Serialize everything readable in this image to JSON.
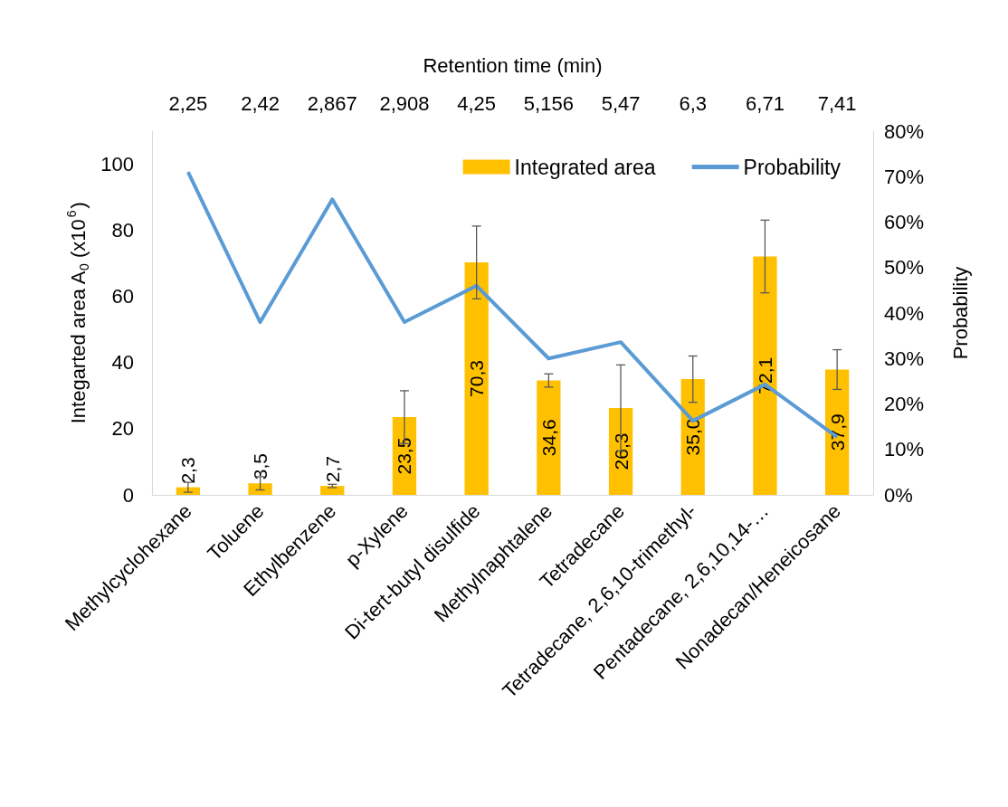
{
  "chart_data": {
    "type": "bar",
    "x2label": "Retention time (min)",
    "ylabel": "Integarted area A$_{0}$ (x10$^{6}$)",
    "y2label": "Probability",
    "categories": [
      "Methylcyclohexane",
      "Toluene",
      "Ethylbenzene",
      "p-Xylene",
      "Di-tert-butyl disulfide",
      "Methylnaphtalene",
      "Tetradecane",
      "Tetradecane, 2,6,10-trimethyl-",
      "Pentadecane, 2,6,10,14-…",
      "Nonadecan/Heneicosane"
    ],
    "annotations": [
      "2,25",
      "2,42",
      "2,867",
      "2,908",
      "4,25",
      "5,156",
      "5,47",
      "6,3",
      "6,71",
      "7,41"
    ],
    "series": [
      {
        "name": "Integrated area",
        "color": "#ffc000",
        "values": [
          2.3,
          3.5,
          2.7,
          23.5,
          70.3,
          34.6,
          26.3,
          35.0,
          72.1,
          37.9
        ],
        "errors": [
          1.5,
          2,
          0.5,
          8,
          11,
          2,
          13,
          7,
          11,
          6
        ],
        "value_labels": [
          "2,3",
          "3,5",
          "2,7",
          "23,5",
          "70,3",
          "34,6",
          "26,3",
          "35,0",
          "72,1",
          "37,9"
        ]
      },
      {
        "name": "Probability",
        "type": "line",
        "axis": "y2",
        "color": "#5b9bd5",
        "values": [
          71,
          38,
          65,
          38,
          46,
          30,
          33.6,
          16.3,
          24.3,
          12.7
        ]
      }
    ],
    "ylim": [
      0,
      110
    ],
    "yticks": [
      0,
      20,
      40,
      60,
      80,
      100
    ],
    "y2lim": [
      0,
      80
    ],
    "y2ticks": [
      {
        "value": 0,
        "label": "0%"
      },
      {
        "value": 10,
        "label": "10%"
      },
      {
        "value": 20,
        "label": "20%"
      },
      {
        "value": 30,
        "label": "30%"
      },
      {
        "value": 40,
        "label": "40%"
      },
      {
        "value": 50,
        "label": "50%"
      },
      {
        "value": 60,
        "label": "60%"
      },
      {
        "value": 70,
        "label": "70%"
      },
      {
        "value": 80,
        "label": "80%"
      }
    ],
    "legend": "top right",
    "marker": "none",
    "line_style": "solid"
  }
}
